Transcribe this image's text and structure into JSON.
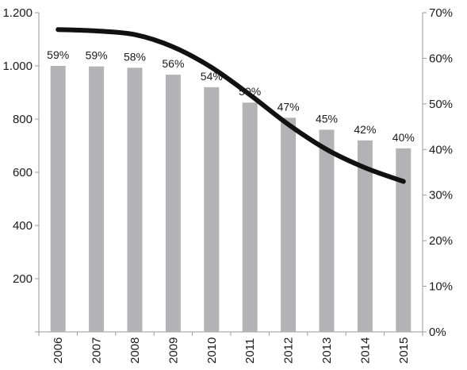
{
  "chart_data": {
    "type": "bar",
    "title": "",
    "xlabel": "",
    "ylabel": "",
    "categories": [
      "2006",
      "2007",
      "2008",
      "2009",
      "2010",
      "2011",
      "2012",
      "2013",
      "2014",
      "2015"
    ],
    "series": [
      {
        "type": "bar",
        "axis": "left",
        "color": "#b3b3b5",
        "values": [
          1000,
          998,
          993,
          967,
          920,
          862,
          805,
          760,
          720,
          690
        ],
        "data_labels": [
          "59%",
          "59%",
          "58%",
          "56%",
          "54%",
          "50%",
          "47%",
          "45%",
          "42%",
          "40%"
        ]
      },
      {
        "type": "line",
        "axis": "right",
        "color": "#111111",
        "values": [
          0.663,
          0.66,
          0.652,
          0.625,
          0.58,
          0.52,
          0.455,
          0.4,
          0.36,
          0.33
        ]
      }
    ],
    "y_left": {
      "ylim": [
        0,
        1200
      ],
      "ticks": [
        0,
        200,
        400,
        600,
        800,
        1000,
        1200
      ],
      "tick_labels": [
        "",
        "200",
        "400",
        "600",
        "800",
        "1.000",
        "1.200"
      ]
    },
    "y_right": {
      "ylim": [
        0,
        0.7
      ],
      "ticks": [
        0,
        0.1,
        0.2,
        0.3,
        0.4,
        0.5,
        0.6,
        0.7
      ],
      "tick_labels": [
        "0%",
        "10%",
        "20%",
        "30%",
        "40%",
        "50%",
        "60%",
        "70%"
      ]
    },
    "grid": false,
    "legend": "none",
    "axis_color": "#9a9a9a",
    "x_tick_rotation": "vertical"
  }
}
